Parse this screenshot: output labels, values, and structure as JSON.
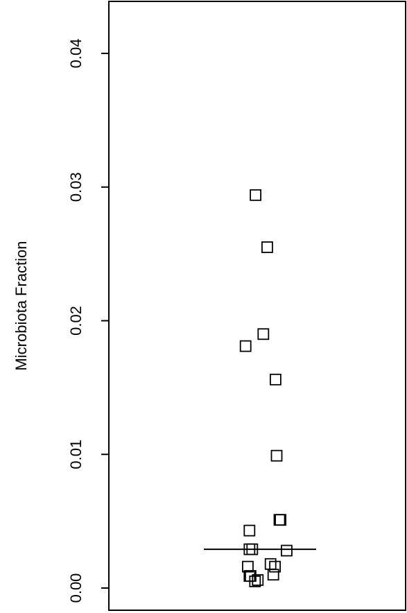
{
  "chart_data": {
    "type": "scatter",
    "title": "",
    "xlabel": "",
    "ylabel": "Microbiota Fraction",
    "ylim": [
      0.0,
      0.0435
    ],
    "yticks": [
      0.0,
      0.01,
      0.02,
      0.03,
      0.04
    ],
    "ytick_labels": [
      "0.00",
      "0.01",
      "0.02",
      "0.03",
      "0.04"
    ],
    "grid": false,
    "legend": "none",
    "marker": "open-square",
    "colors": {
      "marker": "#000000",
      "median_line": "#000000",
      "frame": "#000000"
    },
    "median": 0.0029,
    "points": [
      {
        "x": -0.08,
        "y": 0.0294
      },
      {
        "x": 0.13,
        "y": 0.0255
      },
      {
        "x": 0.06,
        "y": 0.019
      },
      {
        "x": -0.26,
        "y": 0.0181
      },
      {
        "x": 0.28,
        "y": 0.0156
      },
      {
        "x": 0.3,
        "y": 0.0099
      },
      {
        "x": 0.35,
        "y": 0.0051
      },
      {
        "x": 0.37,
        "y": 0.0051
      },
      {
        "x": -0.19,
        "y": 0.0043
      },
      {
        "x": -0.19,
        "y": 0.0029
      },
      {
        "x": -0.14,
        "y": 0.0029
      },
      {
        "x": 0.48,
        "y": 0.0028
      },
      {
        "x": 0.19,
        "y": 0.0018
      },
      {
        "x": 0.27,
        "y": 0.0016
      },
      {
        "x": -0.22,
        "y": 0.0016
      },
      {
        "x": -0.19,
        "y": 0.0009
      },
      {
        "x": -0.17,
        "y": 0.0009
      },
      {
        "x": 0.24,
        "y": 0.001
      },
      {
        "x": -0.04,
        "y": 0.0006
      },
      {
        "x": -0.09,
        "y": 0.0005
      }
    ]
  }
}
